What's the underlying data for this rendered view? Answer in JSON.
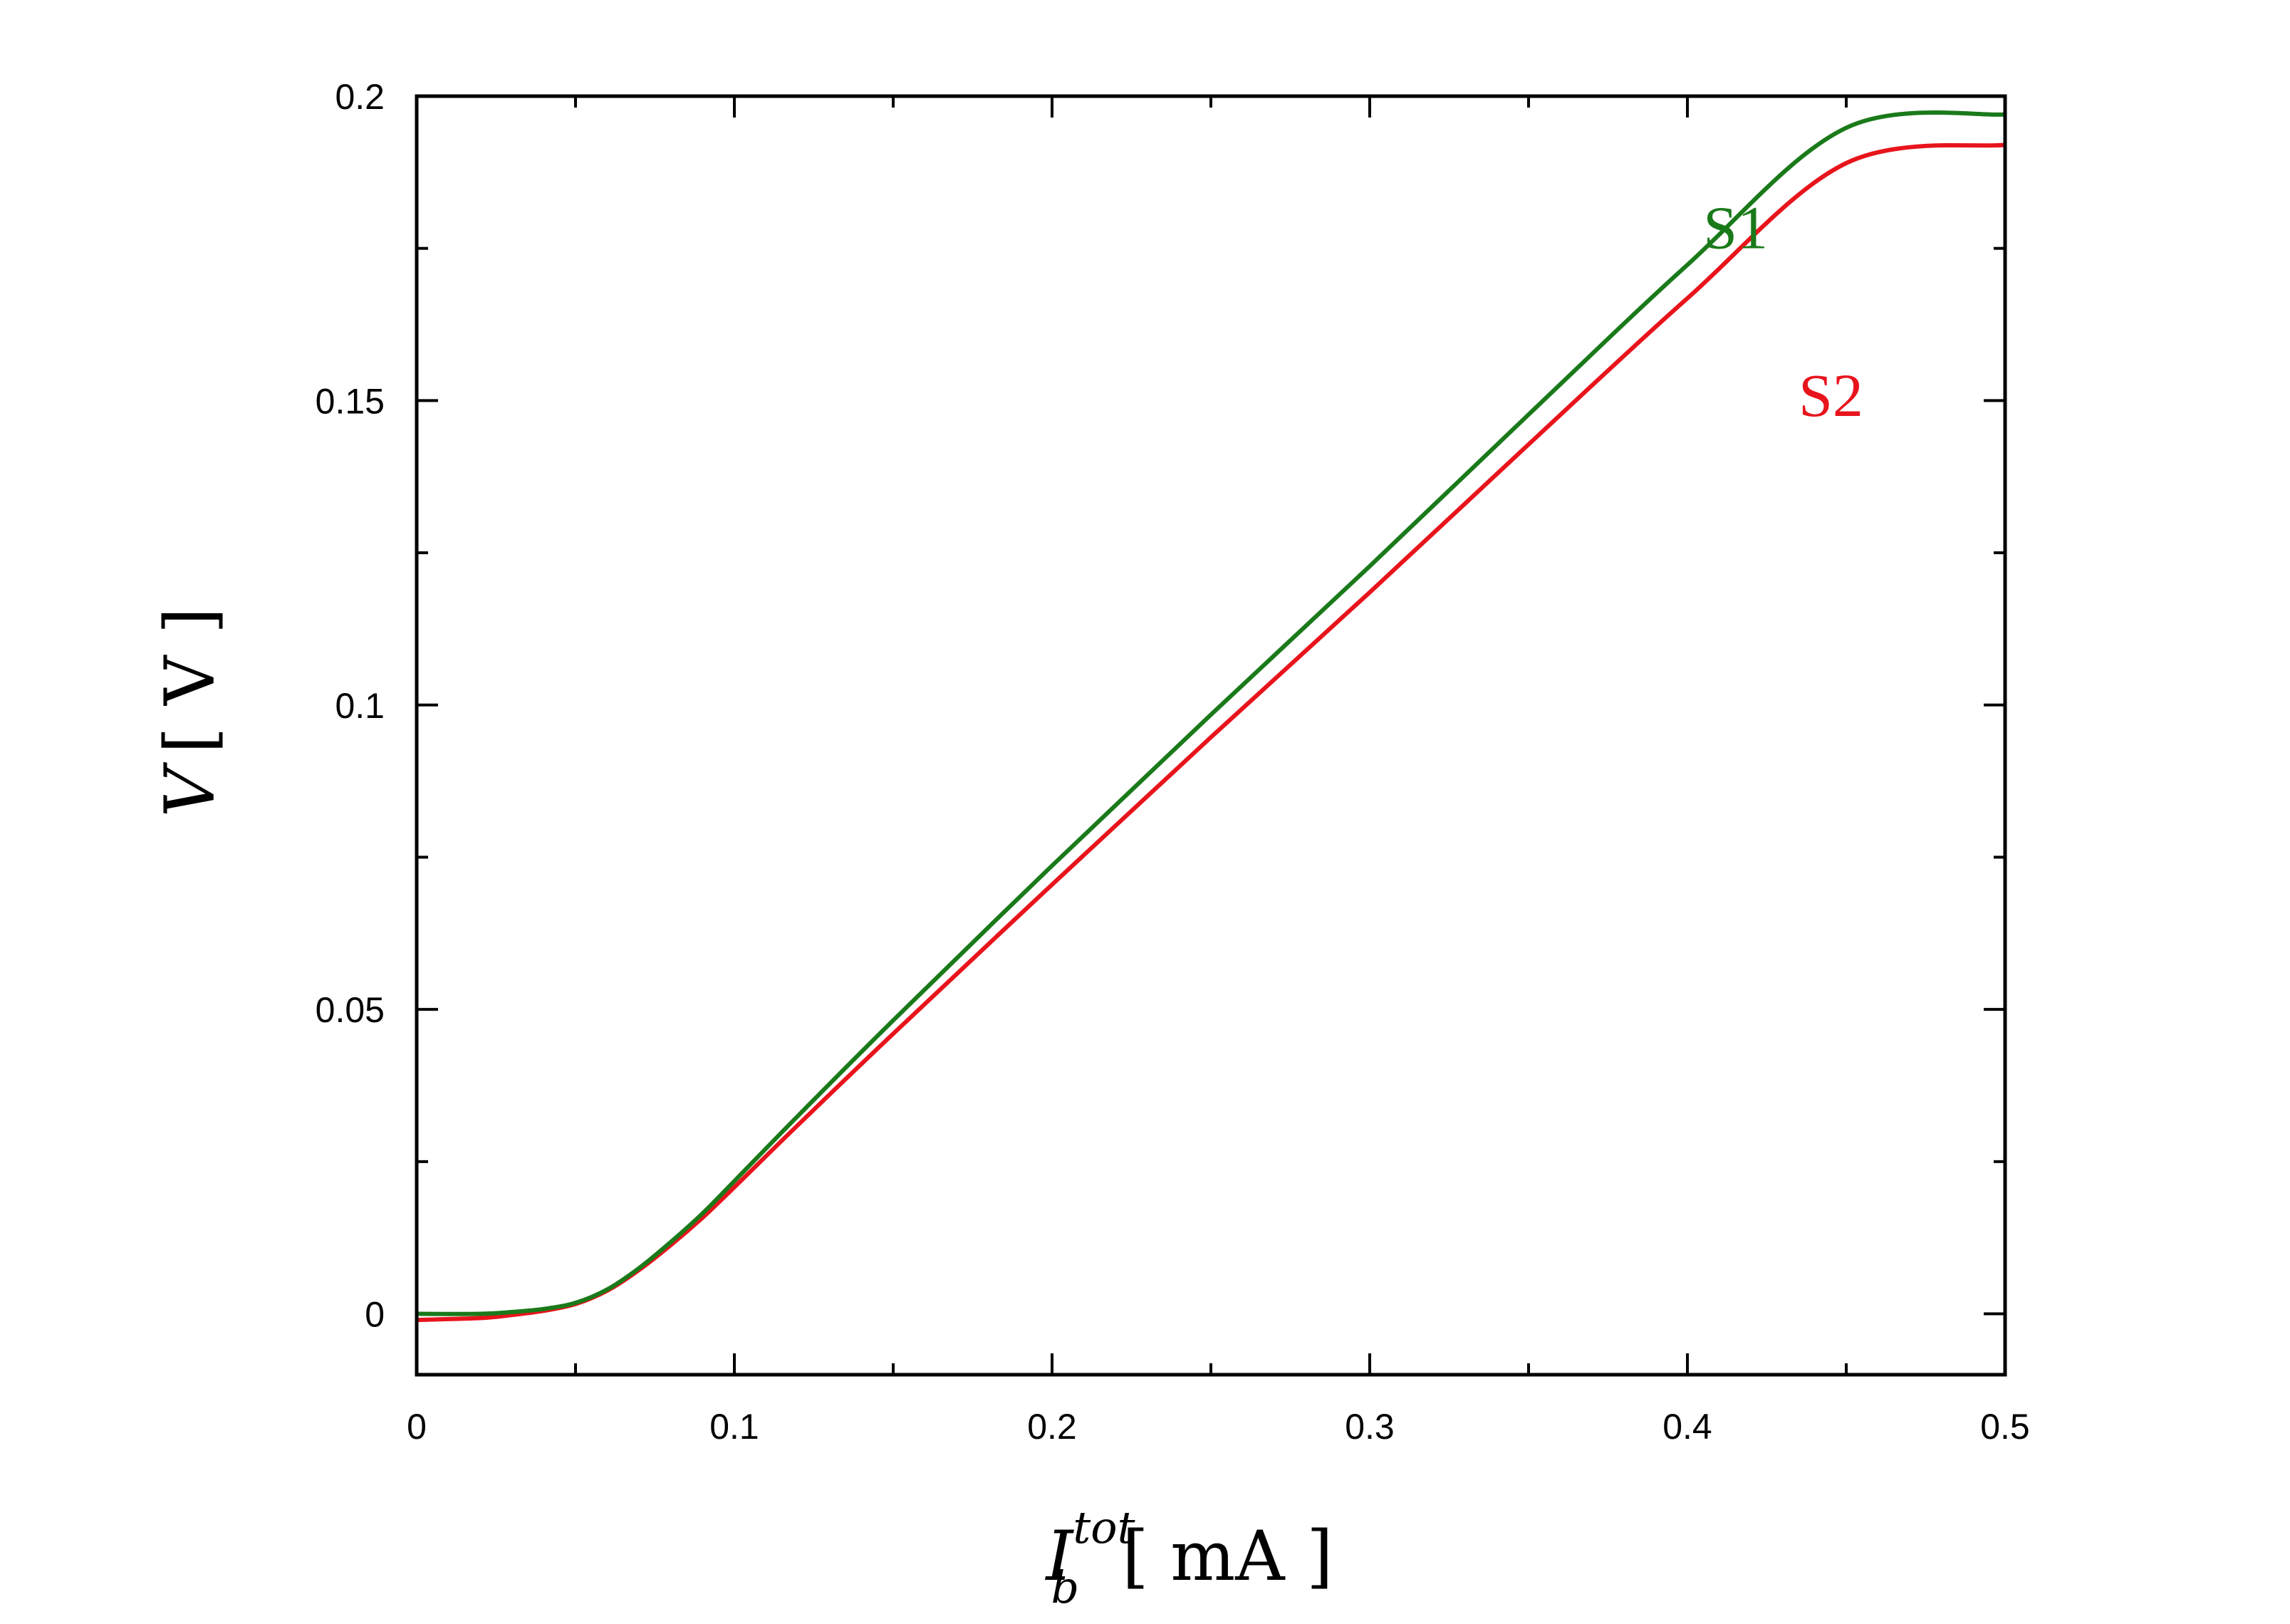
{
  "chart_data": {
    "type": "line",
    "xlabel": {
      "symbol": "I",
      "subscript": "b",
      "superscript": "tot",
      "unit": "mA"
    },
    "ylabel": {
      "symbol": "V",
      "unit": "V"
    },
    "xlim": [
      0,
      0.5
    ],
    "ylim": [
      -0.01,
      0.2
    ],
    "x_ticks": [
      0,
      0.1,
      0.2,
      0.3,
      0.4,
      0.5
    ],
    "x_tick_labels": [
      "0",
      "0.1",
      "0.2",
      "0.3",
      "0.4",
      "0.5"
    ],
    "y_ticks": [
      0,
      0.05,
      0.1,
      0.15,
      0.2
    ],
    "y_tick_labels": [
      "0",
      "0.05",
      "0.1",
      "0.15",
      "0.2"
    ],
    "x_minor_ticks": [
      0.05,
      0.15,
      0.25,
      0.35,
      0.45
    ],
    "y_minor_ticks": [
      0.025,
      0.075,
      0.125,
      0.175
    ],
    "grid": false,
    "series": [
      {
        "name": "S1",
        "color": "#1a7a1a",
        "x": [
          0,
          0.02,
          0.03,
          0.04,
          0.05,
          0.06,
          0.07,
          0.08,
          0.09,
          0.1,
          0.12,
          0.15,
          0.2,
          0.25,
          0.3,
          0.35,
          0.4,
          0.45,
          0.5
        ],
        "y": [
          0,
          0,
          0.0003,
          0.0008,
          0.0018,
          0.004,
          0.0075,
          0.0118,
          0.0165,
          0.0218,
          0.0325,
          0.0482,
          0.0736,
          0.0984,
          0.1228,
          0.1477,
          0.1723,
          0.1948,
          0.197
        ]
      },
      {
        "name": "S2",
        "color": "#e8141c",
        "x": [
          0,
          0.02,
          0.03,
          0.04,
          0.05,
          0.06,
          0.07,
          0.08,
          0.09,
          0.1,
          0.12,
          0.15,
          0.2,
          0.25,
          0.3,
          0.35,
          0.4,
          0.45,
          0.5
        ],
        "y": [
          -0.001,
          -0.0007,
          -0.0002,
          0.0005,
          0.0016,
          0.0038,
          0.0072,
          0.0113,
          0.0158,
          0.0208,
          0.031,
          0.046,
          0.0705,
          0.0947,
          0.1185,
          0.1428,
          0.1668,
          0.189,
          0.192
        ]
      }
    ],
    "series_labels": [
      {
        "text": "S1",
        "color": "#1a7a1a",
        "x": 0.405,
        "y": 0.175
      },
      {
        "text": "S2",
        "color": "#e8141c",
        "x": 0.435,
        "y": 0.1475
      }
    ]
  }
}
